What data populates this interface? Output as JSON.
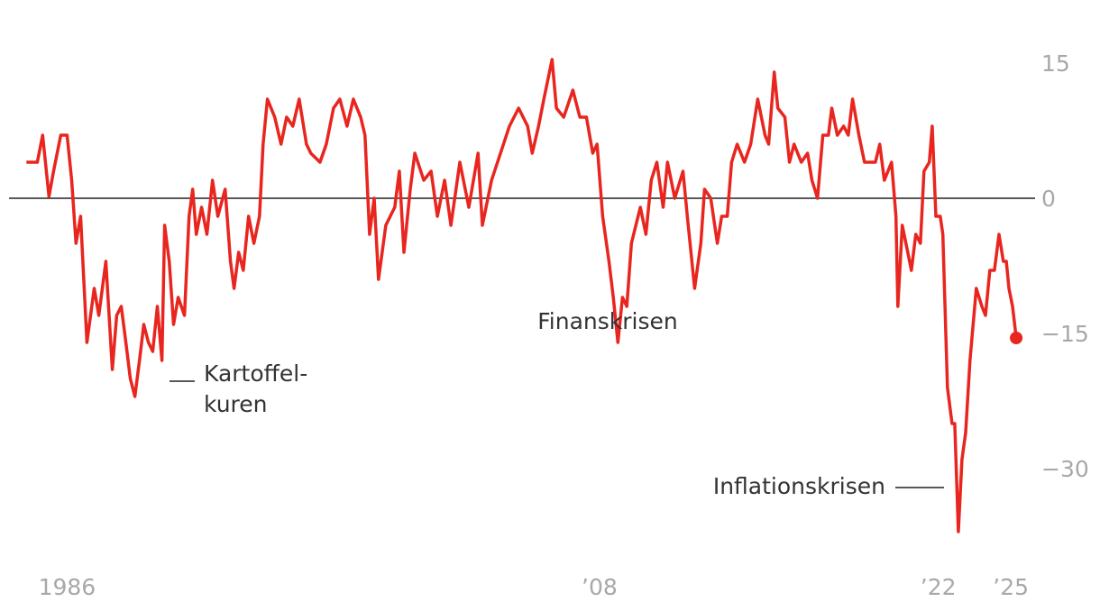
{
  "chart_data": {
    "type": "line",
    "color": "#e8261f",
    "x": [
      1984.32,
      1984.77,
      1984.99,
      1985.25,
      1985.44,
      1985.74,
      1986.0,
      1986.19,
      1986.37,
      1986.56,
      1986.67,
      1986.82,
      1987.12,
      1987.31,
      1987.6,
      1987.87,
      1988.05,
      1988.24,
      1988.43,
      1988.61,
      1988.8,
      1988.99,
      1989.17,
      1989.36,
      1989.54,
      1989.73,
      1989.92,
      1990.03,
      1990.22,
      1990.4,
      1990.59,
      1990.85,
      1991.04,
      1991.19,
      1991.34,
      1991.56,
      1991.78,
      1992.01,
      1992.23,
      1992.53,
      1992.75,
      1992.9,
      1993.09,
      1993.28,
      1993.5,
      1993.72,
      1993.95,
      1994.1,
      1994.28,
      1994.58,
      1994.84,
      1995.07,
      1995.33,
      1995.59,
      1995.89,
      1996.07,
      1996.45,
      1996.71,
      1997.01,
      1997.27,
      1997.57,
      1997.83,
      1998.13,
      1998.31,
      1998.5,
      1998.69,
      1998.87,
      1999.17,
      1999.54,
      1999.73,
      1999.92,
      2000.18,
      2000.37,
      2000.74,
      2001.04,
      2001.3,
      2001.6,
      2001.86,
      2002.23,
      2002.6,
      2002.98,
      2003.16,
      2003.54,
      2003.91,
      2004.28,
      2004.66,
      2005.03,
      2005.22,
      2005.48,
      2005.7,
      2006.04,
      2006.22,
      2006.52,
      2006.9,
      2007.19,
      2007.46,
      2007.72,
      2007.9,
      2008.13,
      2008.39,
      2008.57,
      2008.76,
      2008.95,
      2009.13,
      2009.32,
      2009.69,
      2009.92,
      2010.14,
      2010.37,
      2010.63,
      2010.81,
      2011.11,
      2011.45,
      2011.63,
      2011.93,
      2012.19,
      2012.34,
      2012.6,
      2012.87,
      2013.05,
      2013.28,
      2013.46,
      2013.69,
      2013.99,
      2014.25,
      2014.54,
      2014.84,
      2014.99,
      2015.22,
      2015.37,
      2015.66,
      2015.85,
      2016.04,
      2016.34,
      2016.6,
      2016.78,
      2017.01,
      2017.23,
      2017.46,
      2017.6,
      2017.83,
      2018.09,
      2018.28,
      2018.46,
      2018.72,
      2018.95,
      2019.21,
      2019.4,
      2019.58,
      2019.77,
      2020.07,
      2020.25,
      2020.33,
      2020.51,
      2020.74,
      2020.89,
      2021.07,
      2021.26,
      2021.41,
      2021.63,
      2021.75,
      2021.9,
      2022.08,
      2022.19,
      2022.38,
      2022.57,
      2022.68,
      2022.83,
      2022.98,
      2023.13,
      2023.31,
      2023.57,
      2023.8,
      2023.95,
      2024.13,
      2024.32,
      2024.51,
      2024.69,
      2024.81,
      2024.92,
      2025.07,
      2025.22
    ],
    "values": [
      4,
      4,
      7,
      0.2,
      3,
      7,
      7,
      2,
      -5,
      -2,
      -8,
      -16,
      -10,
      -13,
      -7,
      -19,
      -13,
      -12,
      -16,
      -20,
      -22,
      -18,
      -14,
      -16,
      -17,
      -12,
      -18,
      -3,
      -7,
      -14,
      -11,
      -13,
      -2,
      1,
      -4,
      -1,
      -4,
      2,
      -2,
      1,
      -7,
      -10,
      -6,
      -8,
      -2,
      -5,
      -2,
      6,
      11,
      9,
      6,
      9,
      8,
      11,
      6,
      5,
      4,
      6,
      10,
      11,
      8,
      11,
      9,
      7,
      -4,
      0,
      -9,
      -3,
      -1,
      3,
      -6,
      1,
      5,
      2,
      3,
      -2,
      2,
      -3,
      4,
      -1,
      5,
      -3,
      2,
      5,
      8,
      10,
      8,
      5,
      8,
      11,
      15.4,
      10,
      9,
      12,
      9,
      9,
      5,
      6,
      -2,
      -7,
      -11,
      -16,
      -11,
      -12,
      -5,
      -1,
      -4,
      2,
      4,
      -1,
      4,
      0,
      3,
      -2,
      -10,
      -5,
      1,
      0,
      -5,
      -2,
      -2,
      4,
      6,
      4,
      6,
      11,
      7,
      6,
      14,
      10,
      9,
      4,
      6,
      4,
      5,
      2,
      0,
      7,
      7,
      10,
      7,
      8,
      7,
      11,
      7,
      4,
      4,
      4,
      6,
      2,
      4,
      -2,
      -12,
      -3,
      -6,
      -8,
      -4,
      -5,
      3,
      4,
      8,
      -2,
      -2,
      -4,
      -21,
      -25,
      -25,
      -37,
      -29,
      -26,
      -18,
      -10,
      -12,
      -13,
      -8,
      -8,
      -4,
      -7,
      -7,
      -10,
      -12,
      -15.5
    ],
    "xlim": [
      1983.6,
      2026.0
    ],
    "xticks": [
      1986,
      {
        "value": 2008,
        "label": "’08"
      },
      {
        "value": 2022,
        "label": "’22"
      },
      {
        "value": 2025,
        "label": "’25"
      }
    ],
    "ylim": [
      -39,
      18
    ],
    "yticks": [
      15,
      0,
      {
        "value": -15,
        "label": "−15"
      },
      {
        "value": -30,
        "label": "−30"
      }
    ],
    "annotations": [
      {
        "text": [
          "Kartoffel-",
          "kuren"
        ]
      },
      {
        "text": [
          "Finanskrisen"
        ]
      },
      {
        "text": [
          "Inflationskrisen"
        ]
      }
    ]
  }
}
